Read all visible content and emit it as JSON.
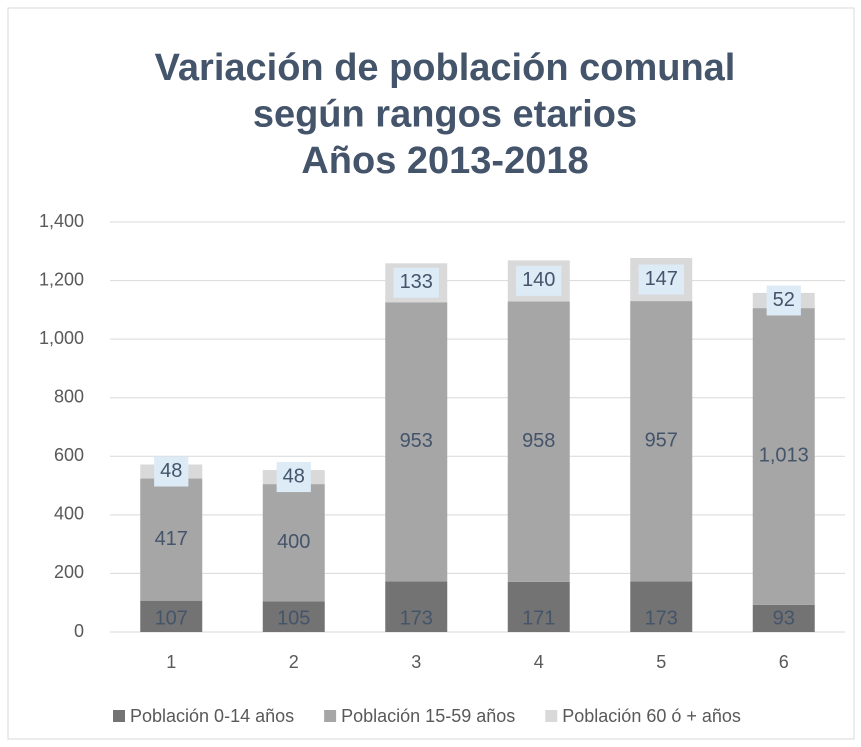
{
  "chart_data": {
    "type": "stacked_bar",
    "title": [
      "Variación de población comunal",
      "según rangos etarios",
      "Años 2013-2018"
    ],
    "categories": [
      "1",
      "2",
      "3",
      "4",
      "5",
      "6"
    ],
    "series": [
      {
        "name": "Población 0-14 años",
        "color": "#737373",
        "values": [
          107,
          105,
          173,
          171,
          173,
          93
        ]
      },
      {
        "name": "Población 15-59 años",
        "color": "#a6a6a6",
        "values": [
          417,
          400,
          953,
          958,
          957,
          1013
        ],
        "value_labels": [
          "417",
          "400",
          "953",
          "958",
          "957",
          "1,013"
        ]
      },
      {
        "name": "Población 60 ó + años",
        "color": "#d9d9d9",
        "values": [
          48,
          48,
          133,
          140,
          147,
          52
        ]
      }
    ],
    "ylim": [
      0,
      1400
    ],
    "yticks": [
      0,
      200,
      400,
      600,
      800,
      {
        "value": 1000,
        "label": "1,000"
      },
      {
        "value": 1200,
        "label": "1,200"
      },
      {
        "value": 1400,
        "label": "1,400"
      }
    ],
    "grid": true,
    "legend": "bottom"
  }
}
